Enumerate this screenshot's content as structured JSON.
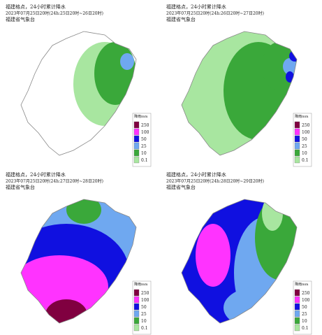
{
  "panels": [
    {
      "title": "福建格点，24小时累计降水",
      "subtitle": "2023年07月25日20时(24h:25日20时~26日20时)",
      "agency": "福建省气象台"
    },
    {
      "title": "福建格点，24小时累计降水",
      "subtitle": "2023年07月25日20时(24h:26日20时~27日20时)",
      "agency": "福建省气象台"
    },
    {
      "title": "福建格点，24小时累计降水",
      "subtitle": "2023年07月25日20时(24h:27日20时~28日20时)",
      "agency": "福建省气象台"
    },
    {
      "title": "福建格点，24小时累计降水",
      "subtitle": "2023年07月25日20时(24h:28日20时~29日20时)",
      "agency": "福建省气象台"
    }
  ],
  "legend": {
    "unit": "降雨mm",
    "items": [
      {
        "value": 250,
        "color": "#800040"
      },
      {
        "value": 100,
        "color": "#ff33ff"
      },
      {
        "value": 50,
        "color": "#1010e0"
      },
      {
        "value": 25,
        "color": "#6fa8f0"
      },
      {
        "value": 10,
        "color": "#3aa83a"
      },
      {
        "value": 0.1,
        "color": "#a8e6a0"
      }
    ]
  }
}
